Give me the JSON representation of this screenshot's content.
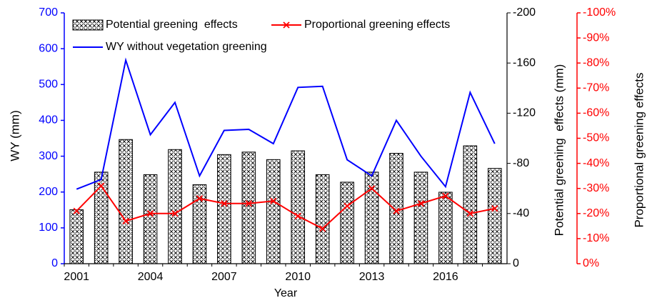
{
  "chart_data": {
    "type": "combo",
    "xlabel": "Year",
    "ylabel": "WY (mm)",
    "y2label": "Potential greening  effects (mm)",
    "y3label": "Proportional greening effects",
    "categories": [
      "2001",
      null,
      null,
      "2004",
      null,
      null,
      "2007",
      null,
      null,
      "2010",
      null,
      null,
      "2013",
      null,
      null,
      "2016",
      null,
      null
    ],
    "ylim": [
      0,
      700
    ],
    "yticks": [
      0,
      100,
      200,
      300,
      400,
      500,
      600,
      700
    ],
    "ycolor": "#0000ff",
    "y2lim": [
      0,
      -200
    ],
    "y2ticks": [
      0,
      -40,
      -80,
      -120,
      -160,
      -200
    ],
    "y2color": "#000000",
    "y3lim": [
      0,
      -100
    ],
    "y3color": "#ff0000",
    "y3ticks": [
      {
        "value": 0,
        "label": "0%"
      },
      {
        "value": -10,
        "label": "-10%"
      },
      {
        "value": -20,
        "label": "-20%"
      },
      {
        "value": -30,
        "label": "-30%"
      },
      {
        "value": -40,
        "label": "-40%"
      },
      {
        "value": -50,
        "label": "-50%"
      },
      {
        "value": -60,
        "label": "-60%"
      },
      {
        "value": -70,
        "label": "-70%"
      },
      {
        "value": -80,
        "label": "-80%"
      },
      {
        "value": -90,
        "label": "-90%"
      },
      {
        "value": -100,
        "label": "-100%"
      }
    ],
    "series": [
      {
        "name": "Potential greening  effects",
        "type": "bar",
        "axis": "y2",
        "color": "#000000",
        "values": [
          -43,
          -73,
          -99,
          -71,
          -91,
          -63,
          -87,
          -89,
          -83,
          -90,
          -71,
          -65,
          -73,
          -88,
          -73,
          -57,
          -94,
          -76
        ]
      },
      {
        "name": "Proportional greening effects",
        "type": "line",
        "axis": "y3",
        "color": "#ff0000",
        "marker": "x",
        "values": [
          -21,
          -31,
          -17,
          -20,
          -20,
          -26,
          -24,
          -24,
          -25,
          -19,
          -14,
          -23,
          -30,
          -21,
          -24,
          -27,
          -20,
          -22
        ]
      },
      {
        "name": "WY without vegetation greening",
        "type": "line",
        "axis": "y",
        "color": "#0000ff",
        "values": [
          208,
          235,
          568,
          360,
          450,
          245,
          372,
          375,
          335,
          492,
          495,
          290,
          245,
          400,
          300,
          215,
          478,
          335
        ]
      }
    ]
  }
}
